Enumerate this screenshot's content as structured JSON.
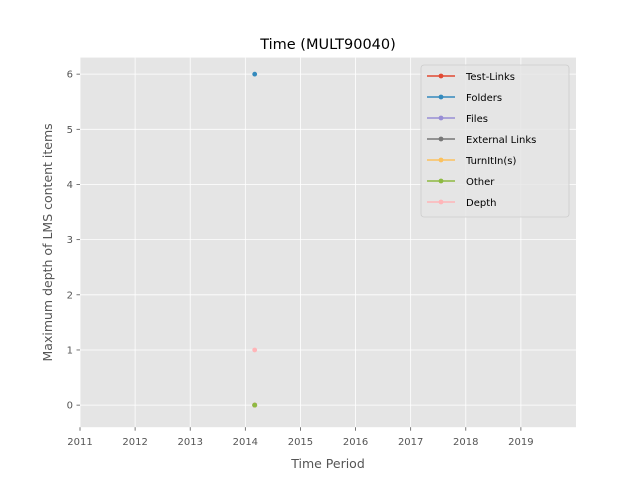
{
  "chart_data": {
    "type": "scatter",
    "title": "Time (MULT90040)",
    "xlabel": "Time Period",
    "ylabel": "Maximum depth of LMS content items",
    "xlim": [
      2011,
      2020
    ],
    "ylim": [
      -0.4,
      6.3
    ],
    "x_ticks": [
      "2011",
      "2012",
      "2013",
      "2014",
      "2015",
      "2016",
      "2017",
      "2018",
      "2019"
    ],
    "y_ticks": [
      "0",
      "1",
      "2",
      "3",
      "4",
      "5",
      "6"
    ],
    "grid": true,
    "legend_position": "top-right",
    "series": [
      {
        "name": "Test-Links",
        "color": "#E24A33",
        "points": [
          {
            "x": 2014.17,
            "y": 0
          }
        ]
      },
      {
        "name": "Folders",
        "color": "#348ABD",
        "points": [
          {
            "x": 2014.17,
            "y": 6
          }
        ]
      },
      {
        "name": "Files",
        "color": "#988ED5",
        "points": [
          {
            "x": 2014.17,
            "y": 0
          }
        ]
      },
      {
        "name": "External Links",
        "color": "#777777",
        "points": [
          {
            "x": 2014.17,
            "y": 0
          }
        ]
      },
      {
        "name": "TurnItIn(s)",
        "color": "#FBC15E",
        "points": [
          {
            "x": 2014.17,
            "y": 0
          }
        ]
      },
      {
        "name": "Other",
        "color": "#8EBA42",
        "points": [
          {
            "x": 2014.17,
            "y": 0
          }
        ]
      },
      {
        "name": "Depth",
        "color": "#FFB5B8",
        "points": [
          {
            "x": 2014.17,
            "y": 1
          }
        ]
      }
    ]
  }
}
